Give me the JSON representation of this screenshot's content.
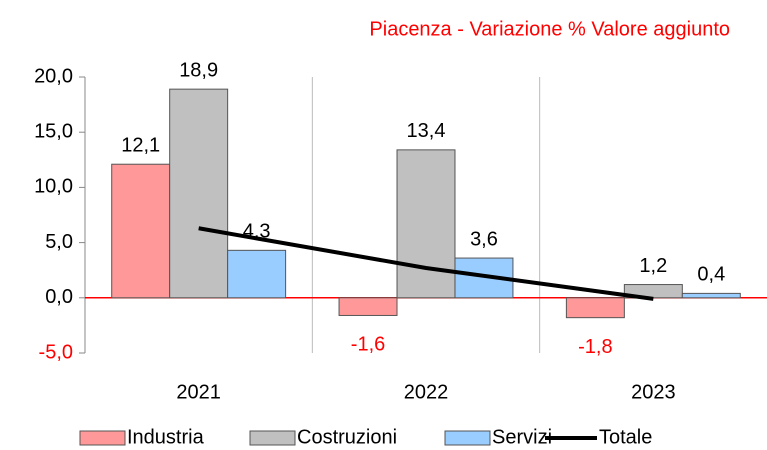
{
  "chart_data": {
    "type": "bar",
    "title": "Piacenza - Variazione % Valore aggiunto",
    "title_color": "#ff0000",
    "negative_color": "#ff0000",
    "categories": [
      "2021",
      "2022",
      "2023"
    ],
    "series": [
      {
        "name": "Industria",
        "color": "#ff9999",
        "values": [
          12.1,
          -1.6,
          -1.8
        ],
        "value_labels": [
          "12,1",
          "-1,6",
          "-1,8"
        ]
      },
      {
        "name": "Costruzioni",
        "color": "#c0c0c0",
        "values": [
          18.9,
          13.4,
          1.2
        ],
        "value_labels": [
          "18,9",
          "13,4",
          "1,2"
        ]
      },
      {
        "name": "Servizi",
        "color": "#99ccff",
        "values": [
          4.3,
          3.6,
          0.4
        ],
        "value_labels": [
          "4,3",
          "3,6",
          "0,4"
        ]
      },
      {
        "name": "Totale",
        "type": "line",
        "color": "#000000",
        "values": [
          6.3,
          2.7,
          -0.1
        ]
      }
    ],
    "ylim": [
      -5,
      20
    ],
    "yticks": [
      {
        "value": -5,
        "label": "-5,0"
      },
      {
        "value": 0,
        "label": "0,0"
      },
      {
        "value": 5,
        "label": "5,0"
      },
      {
        "value": 10,
        "label": "10,0"
      },
      {
        "value": 15,
        "label": "15,0"
      },
      {
        "value": 20,
        "label": "20,0"
      }
    ]
  }
}
